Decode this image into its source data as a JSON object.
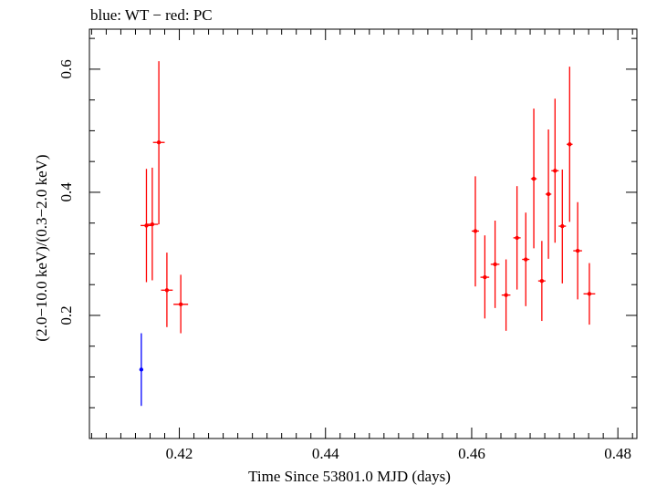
{
  "chart_data": {
    "type": "scatter",
    "title": "blue: WT − red: PC",
    "xlabel": "Time Since 53801.0 MJD (days)",
    "ylabel": "(2.0−10.0 keV)/(0.3−2.0 keV)",
    "xlim": [
      0.4077,
      0.4826
    ],
    "ylim": [
      0.0,
      0.665
    ],
    "x_ticks": [
      0.42,
      0.44,
      0.46,
      0.48
    ],
    "x_tick_labels": [
      "0.42",
      "0.44",
      "0.46",
      "0.48"
    ],
    "x_minor_step": 0.002,
    "y_ticks": [
      0.2,
      0.4,
      0.6
    ],
    "y_tick_labels": [
      "0.2",
      "0.4",
      "0.6"
    ],
    "y_minor_step": 0.05,
    "grid": false,
    "legend": "none",
    "series": [
      {
        "color": "#0000ff",
        "points": [
          {
            "x": 0.4148,
            "xerr": 0.0001,
            "y": 0.112,
            "ylo": 0.053,
            "yhi": 0.171
          }
        ]
      },
      {
        "color": "#ff0000",
        "points": [
          {
            "x": 0.4155,
            "xerr": 0.0008,
            "y": 0.346,
            "ylo": 0.254,
            "yhi": 0.438
          },
          {
            "x": 0.4163,
            "xerr": 0.0008,
            "y": 0.348,
            "ylo": 0.257,
            "yhi": 0.44
          },
          {
            "x": 0.4172,
            "xerr": 0.0008,
            "y": 0.481,
            "ylo": 0.348,
            "yhi": 0.613
          },
          {
            "x": 0.4183,
            "xerr": 0.0008,
            "y": 0.241,
            "ylo": 0.181,
            "yhi": 0.302
          },
          {
            "x": 0.4202,
            "xerr": 0.001,
            "y": 0.218,
            "ylo": 0.171,
            "yhi": 0.266
          },
          {
            "x": 0.4605,
            "xerr": 0.0005,
            "y": 0.337,
            "ylo": 0.247,
            "yhi": 0.426
          },
          {
            "x": 0.4618,
            "xerr": 0.0006,
            "y": 0.262,
            "ylo": 0.195,
            "yhi": 0.33
          },
          {
            "x": 0.4632,
            "xerr": 0.0006,
            "y": 0.283,
            "ylo": 0.212,
            "yhi": 0.354
          },
          {
            "x": 0.4647,
            "xerr": 0.0006,
            "y": 0.233,
            "ylo": 0.175,
            "yhi": 0.291
          },
          {
            "x": 0.4662,
            "xerr": 0.0005,
            "y": 0.326,
            "ylo": 0.242,
            "yhi": 0.41
          },
          {
            "x": 0.4674,
            "xerr": 0.0005,
            "y": 0.291,
            "ylo": 0.215,
            "yhi": 0.367
          },
          {
            "x": 0.4685,
            "xerr": 0.0004,
            "y": 0.422,
            "ylo": 0.309,
            "yhi": 0.536
          },
          {
            "x": 0.4696,
            "xerr": 0.0005,
            "y": 0.256,
            "ylo": 0.191,
            "yhi": 0.321
          },
          {
            "x": 0.4705,
            "xerr": 0.0004,
            "y": 0.397,
            "ylo": 0.292,
            "yhi": 0.502
          },
          {
            "x": 0.4714,
            "xerr": 0.0005,
            "y": 0.435,
            "ylo": 0.318,
            "yhi": 0.552
          },
          {
            "x": 0.4724,
            "xerr": 0.0005,
            "y": 0.345,
            "ylo": 0.252,
            "yhi": 0.437
          },
          {
            "x": 0.4734,
            "xerr": 0.0004,
            "y": 0.478,
            "ylo": 0.352,
            "yhi": 0.604
          },
          {
            "x": 0.4745,
            "xerr": 0.0006,
            "y": 0.305,
            "ylo": 0.226,
            "yhi": 0.384
          },
          {
            "x": 0.4761,
            "xerr": 0.0008,
            "y": 0.235,
            "ylo": 0.185,
            "yhi": 0.285
          }
        ]
      }
    ]
  }
}
